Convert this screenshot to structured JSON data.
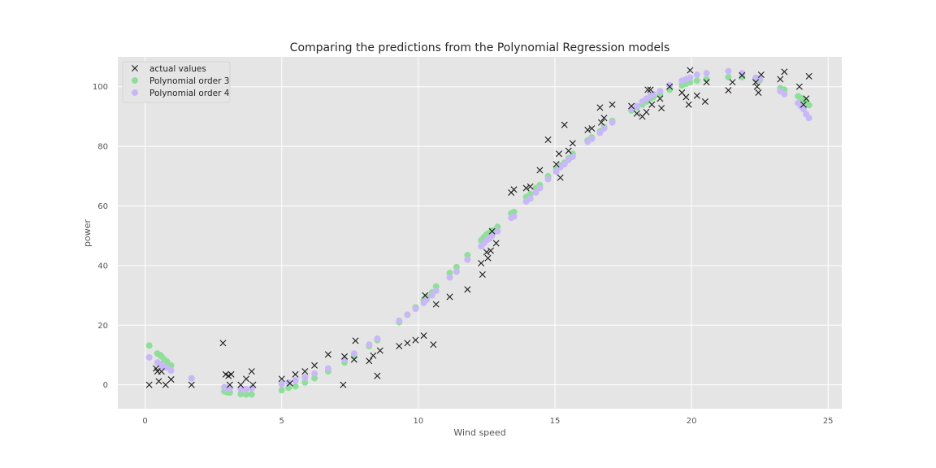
{
  "chart_data": {
    "type": "scatter",
    "title": "Comparing the predictions from the Polynomial Regression models",
    "xlabel": "Wind speed",
    "ylabel": "power",
    "xlim": [
      -1,
      25.5
    ],
    "ylim": [
      -8,
      110
    ],
    "xticks": [
      0,
      5,
      10,
      15,
      20,
      25
    ],
    "yticks": [
      0,
      20,
      40,
      60,
      80,
      100
    ],
    "grid": true,
    "background": "#e5e5e5",
    "legend_position": "top-left",
    "series": [
      {
        "name": "actual values",
        "marker": "x",
        "color": "#1a1a1a",
        "points": [
          [
            0.15,
            0
          ],
          [
            0.4,
            5.5
          ],
          [
            0.45,
            4.5
          ],
          [
            0.5,
            1.2
          ],
          [
            0.6,
            4.5
          ],
          [
            0.75,
            0
          ],
          [
            0.95,
            1.8
          ],
          [
            1.7,
            0
          ],
          [
            2.85,
            14
          ],
          [
            2.95,
            3.5
          ],
          [
            3.05,
            3
          ],
          [
            3.1,
            0
          ],
          [
            3.15,
            3.5
          ],
          [
            3.5,
            0
          ],
          [
            3.7,
            2
          ],
          [
            3.9,
            4.5
          ],
          [
            3.95,
            0
          ],
          [
            5.0,
            2
          ],
          [
            5.3,
            0.5
          ],
          [
            5.5,
            3.5
          ],
          [
            5.85,
            4.5
          ],
          [
            6.2,
            6.5
          ],
          [
            6.7,
            10.2
          ],
          [
            7.25,
            0
          ],
          [
            7.3,
            9.5
          ],
          [
            7.65,
            8.5
          ],
          [
            7.7,
            14.8
          ],
          [
            8.2,
            8
          ],
          [
            8.35,
            9.8
          ],
          [
            8.5,
            3
          ],
          [
            8.6,
            11.5
          ],
          [
            9.3,
            13
          ],
          [
            9.6,
            14
          ],
          [
            9.9,
            15
          ],
          [
            10.2,
            16.5
          ],
          [
            10.25,
            30
          ],
          [
            10.55,
            13.5
          ],
          [
            10.65,
            27
          ],
          [
            11.15,
            29.5
          ],
          [
            11.8,
            32
          ],
          [
            12.3,
            40.8
          ],
          [
            12.35,
            37
          ],
          [
            12.5,
            44.5
          ],
          [
            12.55,
            42.5
          ],
          [
            12.65,
            45
          ],
          [
            12.7,
            51.5
          ],
          [
            12.85,
            47.5
          ],
          [
            13.4,
            64.5
          ],
          [
            13.5,
            65.5
          ],
          [
            13.95,
            66
          ],
          [
            14.1,
            66.5
          ],
          [
            14.45,
            72
          ],
          [
            14.75,
            82.2
          ],
          [
            15.05,
            74
          ],
          [
            15.15,
            77.5
          ],
          [
            15.2,
            69.5
          ],
          [
            15.35,
            87.2
          ],
          [
            15.5,
            78.5
          ],
          [
            15.65,
            81
          ],
          [
            16.2,
            85.5
          ],
          [
            16.35,
            86
          ],
          [
            16.65,
            93
          ],
          [
            16.7,
            88
          ],
          [
            16.8,
            89.5
          ],
          [
            17.1,
            94
          ],
          [
            17.8,
            93.5
          ],
          [
            18.0,
            91
          ],
          [
            18.2,
            90
          ],
          [
            18.35,
            91.5
          ],
          [
            18.4,
            99
          ],
          [
            18.5,
            99
          ],
          [
            18.55,
            94
          ],
          [
            18.85,
            96
          ],
          [
            18.9,
            92.8
          ],
          [
            19.2,
            100
          ],
          [
            19.65,
            98
          ],
          [
            19.8,
            96.5
          ],
          [
            19.9,
            94
          ],
          [
            19.95,
            105.5
          ],
          [
            20.2,
            97
          ],
          [
            20.5,
            95
          ],
          [
            20.55,
            101.5
          ],
          [
            21.35,
            98.8
          ],
          [
            21.5,
            101.5
          ],
          [
            21.85,
            103.8
          ],
          [
            22.35,
            101.5
          ],
          [
            22.4,
            100
          ],
          [
            22.45,
            98
          ],
          [
            22.55,
            104
          ],
          [
            23.25,
            102.5
          ],
          [
            23.4,
            105
          ],
          [
            23.95,
            100
          ],
          [
            24.1,
            94
          ],
          [
            24.2,
            96
          ],
          [
            24.3,
            103.5
          ]
        ]
      },
      {
        "name": "Polynomial order 3",
        "marker": "o",
        "color": "#8fdf9a",
        "points": [
          [
            0.15,
            13.2
          ],
          [
            0.45,
            10.5
          ],
          [
            0.55,
            10
          ],
          [
            0.6,
            9.5
          ],
          [
            0.7,
            8.5
          ],
          [
            0.8,
            7.8
          ],
          [
            0.95,
            6.5
          ],
          [
            1.7,
            2.2
          ],
          [
            2.9,
            -2.2
          ],
          [
            3.0,
            -2.5
          ],
          [
            3.1,
            -2.6
          ],
          [
            3.5,
            -3.1
          ],
          [
            3.7,
            -3.2
          ],
          [
            3.9,
            -3.2
          ],
          [
            5.0,
            -1.8
          ],
          [
            5.25,
            -1
          ],
          [
            5.5,
            -0.5
          ],
          [
            5.85,
            0.8
          ],
          [
            6.2,
            2.2
          ],
          [
            6.7,
            4.5
          ],
          [
            7.3,
            7.5
          ],
          [
            7.65,
            9.5
          ],
          [
            8.2,
            13
          ],
          [
            8.5,
            15
          ],
          [
            9.3,
            21
          ],
          [
            9.6,
            23.5
          ],
          [
            9.9,
            26
          ],
          [
            10.2,
            28.5
          ],
          [
            10.3,
            29.5
          ],
          [
            10.5,
            31
          ],
          [
            10.65,
            33
          ],
          [
            11.15,
            37.5
          ],
          [
            11.4,
            39.5
          ],
          [
            11.8,
            43.5
          ],
          [
            12.3,
            48.5
          ],
          [
            12.4,
            49.5
          ],
          [
            12.5,
            50.5
          ],
          [
            12.6,
            51
          ],
          [
            12.7,
            51.8
          ],
          [
            12.9,
            53
          ],
          [
            13.4,
            57.5
          ],
          [
            13.5,
            58
          ],
          [
            13.95,
            63
          ],
          [
            14.1,
            64
          ],
          [
            14.3,
            66
          ],
          [
            14.45,
            67
          ],
          [
            14.75,
            70
          ],
          [
            15.05,
            72.5
          ],
          [
            15.2,
            73.5
          ],
          [
            15.35,
            74.5
          ],
          [
            15.5,
            76
          ],
          [
            15.65,
            77.5
          ],
          [
            16.2,
            82
          ],
          [
            16.35,
            83
          ],
          [
            16.65,
            85
          ],
          [
            16.8,
            86.5
          ],
          [
            17.1,
            88.5
          ],
          [
            17.8,
            92
          ],
          [
            18.0,
            93
          ],
          [
            18.2,
            94
          ],
          [
            18.35,
            95
          ],
          [
            18.5,
            96
          ],
          [
            18.6,
            96.5
          ],
          [
            18.85,
            97.5
          ],
          [
            19.2,
            99
          ],
          [
            19.65,
            100.5
          ],
          [
            19.8,
            101
          ],
          [
            19.95,
            101.5
          ],
          [
            20.2,
            102
          ],
          [
            20.55,
            102.5
          ],
          [
            21.35,
            103.2
          ],
          [
            21.85,
            103.2
          ],
          [
            22.35,
            102.5
          ],
          [
            22.5,
            102.2
          ],
          [
            23.25,
            99.5
          ],
          [
            23.4,
            99
          ],
          [
            23.9,
            96.8
          ],
          [
            24.0,
            96.2
          ],
          [
            24.1,
            95.8
          ],
          [
            24.2,
            95
          ],
          [
            24.3,
            93.8
          ]
        ]
      },
      {
        "name": "Polynomial order 4",
        "marker": "o",
        "color": "#c8b8f5",
        "points": [
          [
            0.15,
            9.2
          ],
          [
            0.45,
            7.5
          ],
          [
            0.55,
            7
          ],
          [
            0.6,
            6.5
          ],
          [
            0.7,
            6
          ],
          [
            0.8,
            5.8
          ],
          [
            0.95,
            4.8
          ],
          [
            1.7,
            2.2
          ],
          [
            2.9,
            -0.8
          ],
          [
            3.0,
            -1
          ],
          [
            3.1,
            -1.2
          ],
          [
            3.5,
            -1.5
          ],
          [
            3.7,
            -1.5
          ],
          [
            3.9,
            -1.2
          ],
          [
            5.0,
            0.2
          ],
          [
            5.25,
            0.8
          ],
          [
            5.5,
            1.5
          ],
          [
            5.85,
            2.5
          ],
          [
            6.2,
            3.8
          ],
          [
            6.7,
            5.5
          ],
          [
            7.3,
            8.5
          ],
          [
            7.65,
            10.5
          ],
          [
            8.2,
            13.5
          ],
          [
            8.5,
            15.5
          ],
          [
            9.3,
            21.5
          ],
          [
            9.6,
            23.5
          ],
          [
            9.9,
            25.5
          ],
          [
            10.2,
            27.5
          ],
          [
            10.3,
            28.5
          ],
          [
            10.5,
            30
          ],
          [
            10.65,
            31.5
          ],
          [
            11.15,
            36
          ],
          [
            11.4,
            38
          ],
          [
            11.8,
            42
          ],
          [
            12.3,
            46.5
          ],
          [
            12.4,
            47.5
          ],
          [
            12.5,
            48.5
          ],
          [
            12.6,
            49
          ],
          [
            12.7,
            50
          ],
          [
            12.9,
            51.5
          ],
          [
            13.4,
            56
          ],
          [
            13.5,
            56.5
          ],
          [
            13.95,
            61.5
          ],
          [
            14.1,
            62.5
          ],
          [
            14.3,
            64.5
          ],
          [
            14.45,
            66
          ],
          [
            14.75,
            69
          ],
          [
            15.05,
            71.5
          ],
          [
            15.2,
            73
          ],
          [
            15.35,
            74
          ],
          [
            15.5,
            75.5
          ],
          [
            15.65,
            76.5
          ],
          [
            16.2,
            81.5
          ],
          [
            16.35,
            82.5
          ],
          [
            16.65,
            84.5
          ],
          [
            16.8,
            86
          ],
          [
            17.1,
            88
          ],
          [
            17.8,
            92.5
          ],
          [
            18.0,
            93.5
          ],
          [
            18.2,
            95
          ],
          [
            18.35,
            96
          ],
          [
            18.5,
            97
          ],
          [
            18.6,
            97.5
          ],
          [
            18.85,
            98.5
          ],
          [
            19.2,
            100.5
          ],
          [
            19.65,
            102
          ],
          [
            19.8,
            102.5
          ],
          [
            19.95,
            103
          ],
          [
            20.2,
            104
          ],
          [
            20.55,
            104.5
          ],
          [
            21.35,
            105.2
          ],
          [
            21.85,
            104.5
          ],
          [
            22.35,
            103
          ],
          [
            22.5,
            102.5
          ],
          [
            23.25,
            98.5
          ],
          [
            23.4,
            97.5
          ],
          [
            23.9,
            94.5
          ],
          [
            24.0,
            93.5
          ],
          [
            24.1,
            92.5
          ],
          [
            24.2,
            90.8
          ],
          [
            24.3,
            89.5
          ]
        ]
      }
    ]
  }
}
